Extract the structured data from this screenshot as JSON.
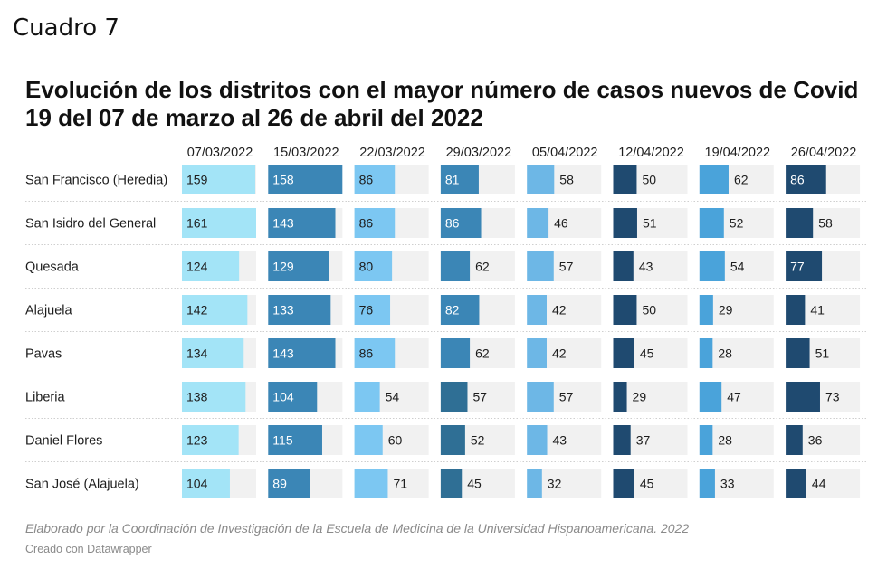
{
  "header": {
    "cuadro": "Cuadro 7",
    "title": "Evolución de los distritos con el mayor número de casos nuevos de Covid 19 del 07 de marzo al 26 de abril del 2022"
  },
  "footer": {
    "note": "Elaborado por la Coordinación de Investigación de la Escuela de Medicina de la Universidad Hispanoamericana. 2022",
    "credit": "Creado con Datawrapper"
  },
  "chart_data": {
    "type": "table",
    "columns": [
      "07/03/2022",
      "15/03/2022",
      "22/03/2022",
      "29/03/2022",
      "05/04/2022",
      "12/04/2022",
      "19/04/2022",
      "26/04/2022"
    ],
    "rows": [
      {
        "name": "San Francisco (Heredia)",
        "values": [
          159,
          158,
          86,
          81,
          58,
          50,
          62,
          86
        ]
      },
      {
        "name": "San Isidro del General",
        "values": [
          161,
          143,
          86,
          86,
          46,
          51,
          52,
          58
        ]
      },
      {
        "name": "Quesada",
        "values": [
          124,
          129,
          80,
          62,
          57,
          43,
          54,
          77
        ]
      },
      {
        "name": "Alajuela",
        "values": [
          142,
          133,
          76,
          82,
          42,
          50,
          29,
          41
        ]
      },
      {
        "name": "Pavas",
        "values": [
          134,
          143,
          86,
          62,
          42,
          45,
          28,
          51
        ]
      },
      {
        "name": "Liberia",
        "values": [
          138,
          104,
          54,
          57,
          57,
          29,
          47,
          73
        ]
      },
      {
        "name": "Daniel Flores",
        "values": [
          123,
          115,
          60,
          52,
          43,
          37,
          28,
          36
        ]
      },
      {
        "name": "San José (Alajuela)",
        "values": [
          104,
          89,
          71,
          45,
          32,
          45,
          33,
          44
        ]
      }
    ],
    "column_max": [
      161,
      158,
      158,
      158,
      158,
      158,
      158,
      158
    ],
    "colors": {
      "track": "#f1f1f1",
      "dark": "#1f4a70",
      "mid_dark": "#2f6f95",
      "mid": "#3b86b6",
      "sky": "#4aa3da",
      "light": "#6db7e6",
      "lighter": "#7cc7f2",
      "lightest": "#a3e4f7"
    }
  }
}
